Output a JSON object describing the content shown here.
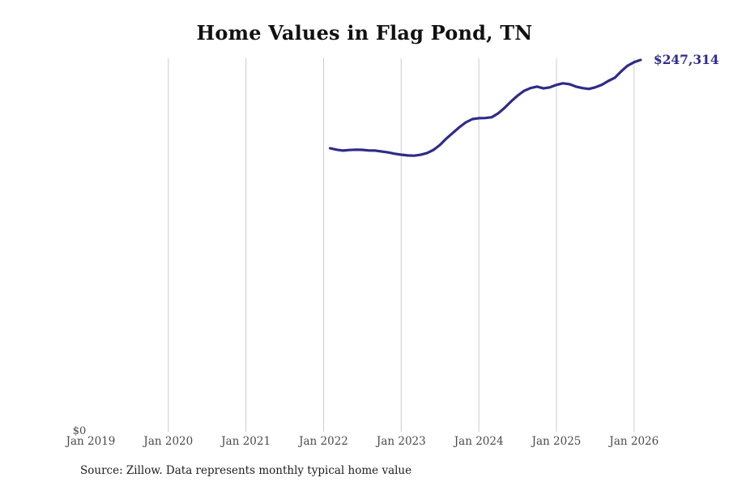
{
  "title": "Home Values in Flag Pond, TN",
  "source_note": "Source: Zillow. Data represents monthly typical home value",
  "colors": {
    "line": "#2f2b8a",
    "end_label": "#2f2b8a",
    "grid": "#cccccc",
    "axis_text": "#4a4a4a",
    "title_text": "#111111",
    "source_text": "#1d1d1d",
    "background": "#ffffff"
  },
  "chart_data": {
    "type": "line",
    "title": "Home Values in Flag Pond, TN",
    "xlabel": "",
    "ylabel": "",
    "end_label": "$247,314",
    "legend": null,
    "grid": "vertical-only",
    "y_axis": {
      "min": 0,
      "min_label": "$0",
      "max_value_shown": 247314
    },
    "x_ticks": [
      {
        "year": 2019,
        "label": "Jan 2019"
      },
      {
        "year": 2020,
        "label": "Jan 2020"
      },
      {
        "year": 2021,
        "label": "Jan 2021"
      },
      {
        "year": 2022,
        "label": "Jan 2022"
      },
      {
        "year": 2023,
        "label": "Jan 2023"
      },
      {
        "year": 2024,
        "label": "Jan 2024"
      },
      {
        "year": 2025,
        "label": "Jan 2025"
      },
      {
        "year": 2026,
        "label": "Jan 2026"
      }
    ],
    "gridline_years": [
      2020,
      2021,
      2022,
      2023,
      2024,
      2025,
      2026
    ],
    "series": [
      {
        "name": "Monthly typical home value",
        "points": [
          {
            "date": "2022-02",
            "value": 188600
          },
          {
            "date": "2022-03",
            "value": 187600
          },
          {
            "date": "2022-04",
            "value": 187000
          },
          {
            "date": "2022-05",
            "value": 187400
          },
          {
            "date": "2022-06",
            "value": 187600
          },
          {
            "date": "2022-07",
            "value": 187500
          },
          {
            "date": "2022-08",
            "value": 187100
          },
          {
            "date": "2022-09",
            "value": 187000
          },
          {
            "date": "2022-10",
            "value": 186400
          },
          {
            "date": "2022-11",
            "value": 185800
          },
          {
            "date": "2022-12",
            "value": 184900
          },
          {
            "date": "2023-01",
            "value": 184300
          },
          {
            "date": "2023-02",
            "value": 183800
          },
          {
            "date": "2023-03",
            "value": 183600
          },
          {
            "date": "2023-04",
            "value": 184200
          },
          {
            "date": "2023-05",
            "value": 185400
          },
          {
            "date": "2023-06",
            "value": 187500
          },
          {
            "date": "2023-07",
            "value": 190800
          },
          {
            "date": "2023-08",
            "value": 195100
          },
          {
            "date": "2023-09",
            "value": 198900
          },
          {
            "date": "2023-10",
            "value": 202600
          },
          {
            "date": "2023-11",
            "value": 205800
          },
          {
            "date": "2023-12",
            "value": 208000
          },
          {
            "date": "2024-01",
            "value": 208600
          },
          {
            "date": "2024-02",
            "value": 208700
          },
          {
            "date": "2024-03",
            "value": 209200
          },
          {
            "date": "2024-04",
            "value": 211800
          },
          {
            "date": "2024-05",
            "value": 215500
          },
          {
            "date": "2024-06",
            "value": 219800
          },
          {
            "date": "2024-07",
            "value": 223600
          },
          {
            "date": "2024-08",
            "value": 226800
          },
          {
            "date": "2024-09",
            "value": 228600
          },
          {
            "date": "2024-10",
            "value": 229600
          },
          {
            "date": "2024-11",
            "value": 228400
          },
          {
            "date": "2024-12",
            "value": 229100
          },
          {
            "date": "2025-01",
            "value": 230700
          },
          {
            "date": "2025-02",
            "value": 231800
          },
          {
            "date": "2025-03",
            "value": 231200
          },
          {
            "date": "2025-04",
            "value": 229600
          },
          {
            "date": "2025-05",
            "value": 228600
          },
          {
            "date": "2025-06",
            "value": 228000
          },
          {
            "date": "2025-07",
            "value": 229100
          },
          {
            "date": "2025-08",
            "value": 230700
          },
          {
            "date": "2025-09",
            "value": 233300
          },
          {
            "date": "2025-10",
            "value": 235400
          },
          {
            "date": "2025-11",
            "value": 239700
          },
          {
            "date": "2025-12",
            "value": 243500
          },
          {
            "date": "2026-01",
            "value": 245800
          },
          {
            "date": "2026-02",
            "value": 247314
          }
        ]
      }
    ]
  }
}
